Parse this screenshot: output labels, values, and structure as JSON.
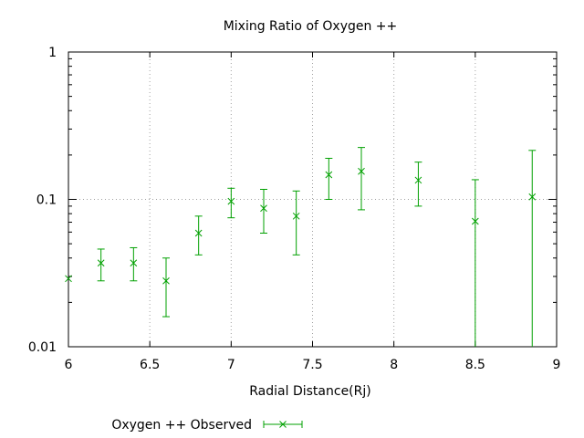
{
  "chart_data": {
    "type": "scatter",
    "title": "Mixing Ratio of Oxygen ++",
    "xlabel": "Radial Distance(Rj)",
    "ylabel": "",
    "xlim": [
      6,
      9
    ],
    "ylim": [
      0.01,
      1
    ],
    "yscale": "log",
    "grid": "major gridlines at x ticks and at y = 0.1",
    "legend": "bottom-left",
    "x_ticks": [
      "6",
      "6.5",
      "7",
      "7.5",
      "8",
      "8.5",
      "9"
    ],
    "y_ticks": [
      "0.01",
      "0.1",
      "1"
    ],
    "colors": {
      "series": "#00a000",
      "grid": "#a0a0a0",
      "axis": "#000000"
    },
    "series": [
      {
        "name": "Oxygen ++ Observed",
        "x": [
          6.0,
          6.2,
          6.4,
          6.6,
          6.8,
          7.0,
          7.2,
          7.4,
          7.6,
          7.8,
          8.15,
          8.5,
          8.85
        ],
        "y": [
          0.029,
          0.037,
          0.037,
          0.028,
          0.059,
          0.097,
          0.087,
          0.077,
          0.147,
          0.155,
          0.135,
          0.071,
          0.104
        ],
        "y_low": [
          null,
          0.028,
          0.028,
          0.016,
          0.042,
          0.075,
          0.059,
          0.042,
          0.1,
          0.085,
          0.09,
          0.01,
          0.01
        ],
        "y_high": [
          null,
          0.046,
          0.047,
          0.04,
          0.077,
          0.119,
          0.117,
          0.114,
          0.19,
          0.225,
          0.179,
          0.136,
          0.215
        ]
      }
    ]
  }
}
